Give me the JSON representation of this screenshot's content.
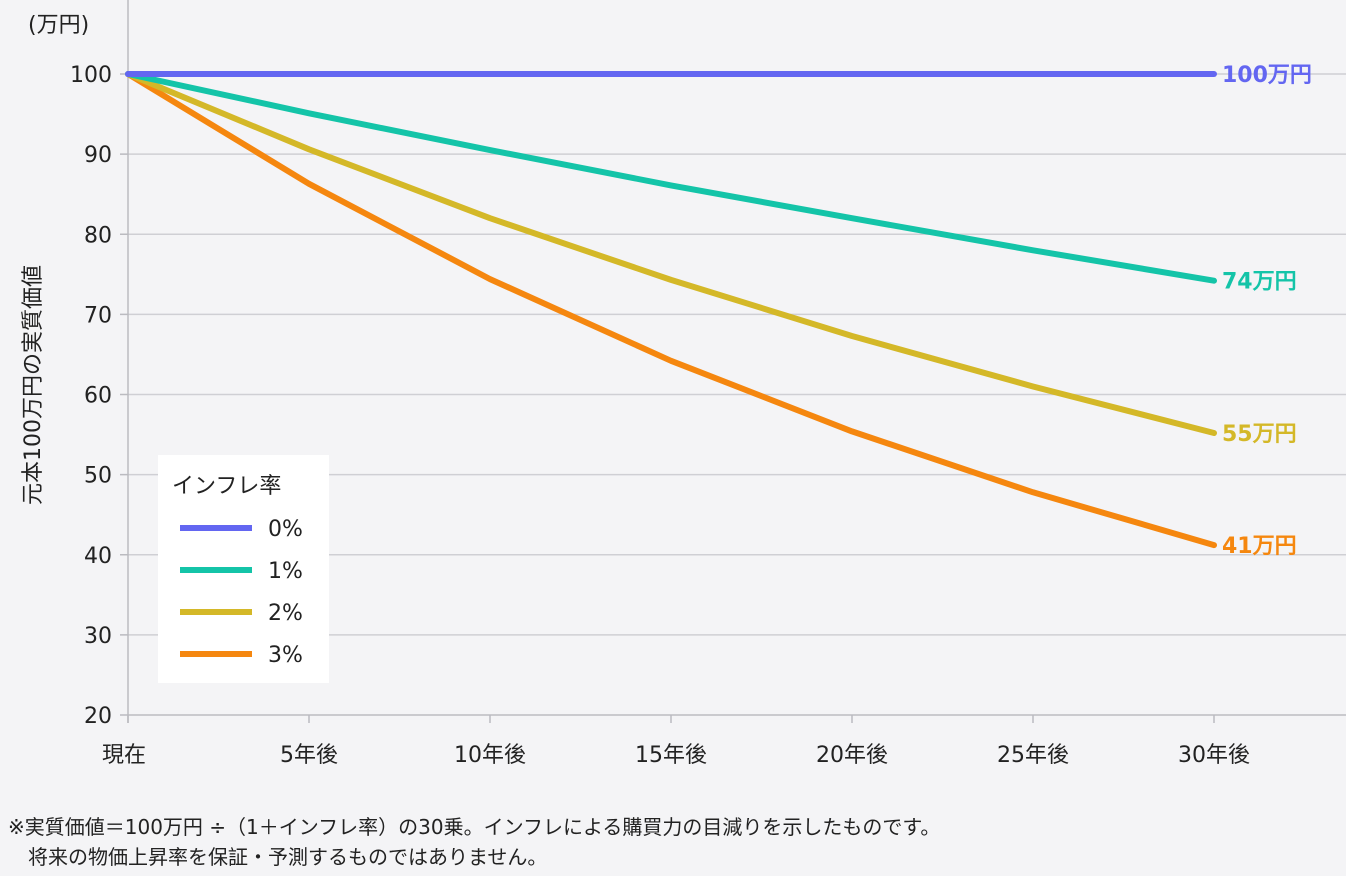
{
  "chart_data": {
    "type": "line",
    "unit_label": "(万円)",
    "ylabel": "元本100万円の実質価値",
    "x": [
      "現在",
      "5年後",
      "10年後",
      "15年後",
      "20年後",
      "25年後",
      "30年後"
    ],
    "x_years": [
      0,
      5,
      10,
      15,
      20,
      25,
      30
    ],
    "ylim": [
      20,
      100
    ],
    "yticks": [
      20,
      30,
      40,
      50,
      60,
      70,
      80,
      90,
      100
    ],
    "grid": true,
    "legend": {
      "title": "インフレ率",
      "placement": "bottom-left"
    },
    "series": [
      {
        "name": "0%",
        "color": "#6366f1",
        "values": [
          100,
          100,
          100,
          100,
          100,
          100,
          100
        ],
        "end_label": "100万円"
      },
      {
        "name": "1%",
        "color": "#14c4a8",
        "values": [
          100,
          95.1,
          90.5,
          86.1,
          82.0,
          78.0,
          74.2
        ],
        "end_label": "74万円"
      },
      {
        "name": "2%",
        "color": "#d4b828",
        "values": [
          100,
          90.6,
          82.0,
          74.3,
          67.3,
          61.0,
          55.2
        ],
        "end_label": "55万円"
      },
      {
        "name": "3%",
        "color": "#f5870f",
        "values": [
          100,
          86.3,
          74.4,
          64.2,
          55.4,
          47.8,
          41.2
        ],
        "end_label": "41万円"
      }
    ]
  },
  "footnote": {
    "line1": "※実質価値＝100万円 ÷（1＋インフレ率）の30乗。インフレによる購買力の目減りを示したものです。",
    "line2": "将来の物価上昇率を保証・予測するものではありません。"
  }
}
